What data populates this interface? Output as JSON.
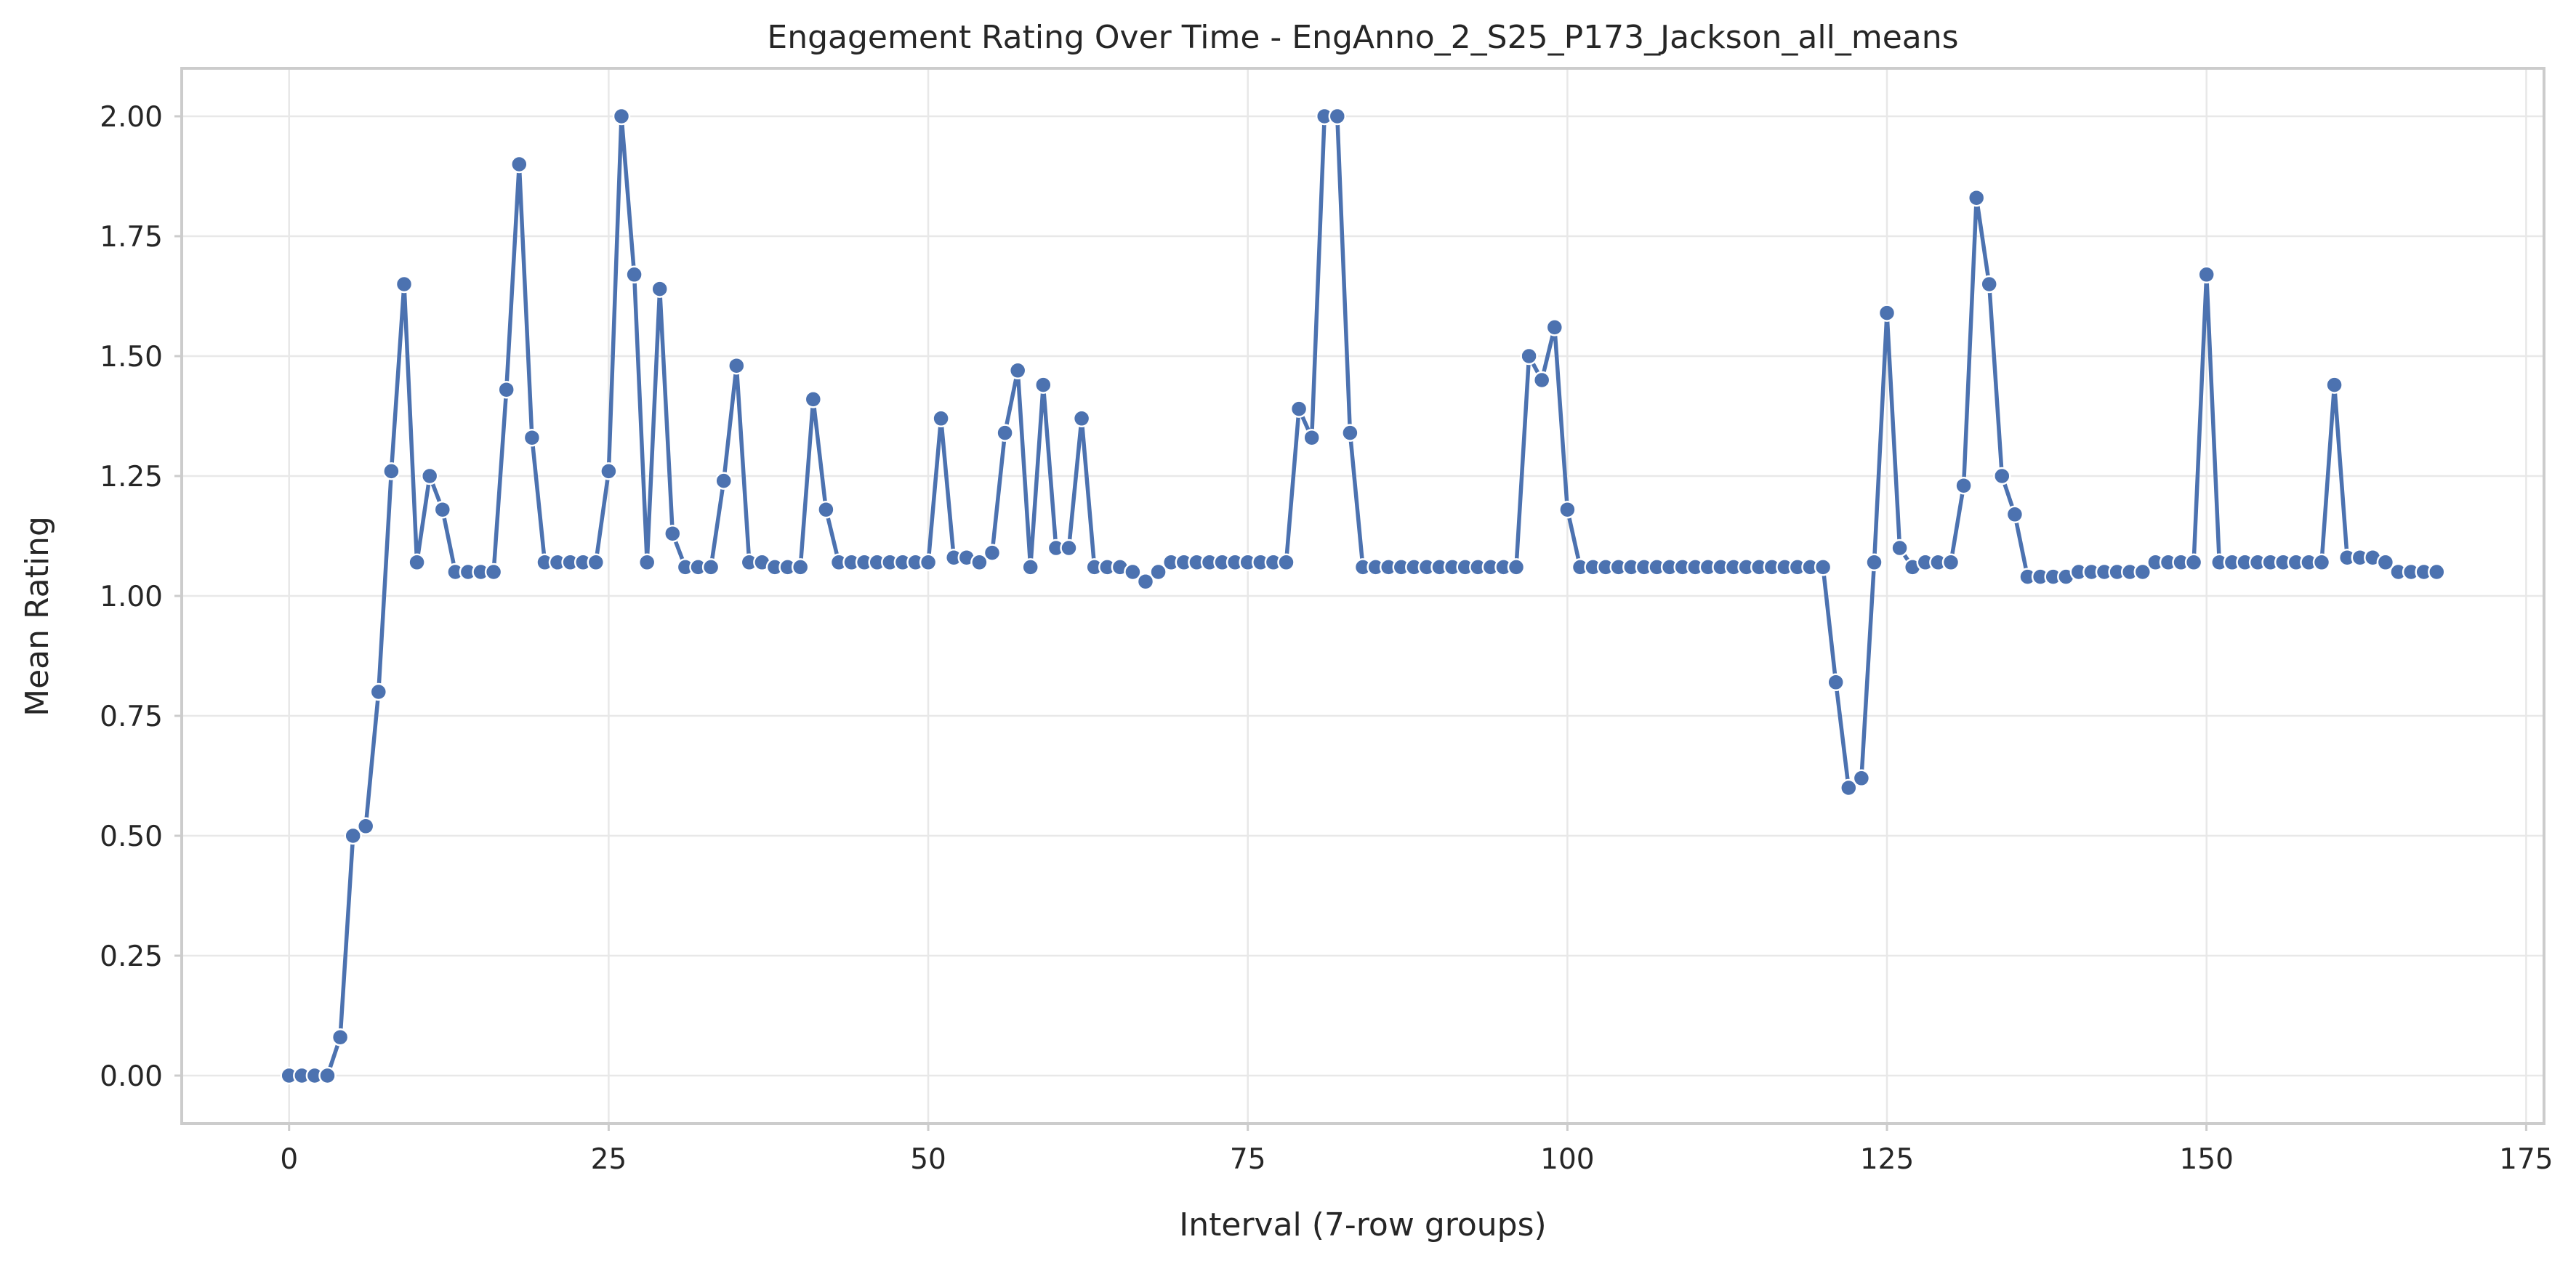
{
  "chart_data": {
    "type": "line",
    "title": "Engagement Rating Over Time - EngAnno_2_S25_P173_Jackson_all_means",
    "xlabel": "Interval (7-row groups)",
    "ylabel": "Mean Rating",
    "xlim": [
      -8.4,
      176.4
    ],
    "ylim": [
      -0.1,
      2.1
    ],
    "xticks": [
      0,
      25,
      50,
      75,
      100,
      125,
      150,
      175
    ],
    "yticks": [
      0.0,
      0.25,
      0.5,
      0.75,
      1.0,
      1.25,
      1.5,
      1.75,
      2.0
    ],
    "xtick_labels": [
      "0",
      "25",
      "50",
      "75",
      "100",
      "125",
      "150",
      "175"
    ],
    "ytick_labels": [
      "0.00",
      "0.25",
      "0.50",
      "0.75",
      "1.00",
      "1.25",
      "1.50",
      "1.75",
      "2.00"
    ],
    "grid": true,
    "color": "#4c72b0",
    "marker": "circle",
    "x_start": 0,
    "x_step": 1,
    "values": [
      0.0,
      0.0,
      0.0,
      0.0,
      0.08,
      0.5,
      0.52,
      0.8,
      1.26,
      1.65,
      1.07,
      1.25,
      1.18,
      1.05,
      1.05,
      1.05,
      1.05,
      1.43,
      1.9,
      1.33,
      1.07,
      1.07,
      1.07,
      1.07,
      1.07,
      1.26,
      2.0,
      1.67,
      1.07,
      1.64,
      1.13,
      1.06,
      1.06,
      1.06,
      1.24,
      1.48,
      1.07,
      1.07,
      1.06,
      1.06,
      1.06,
      1.41,
      1.18,
      1.07,
      1.07,
      1.07,
      1.07,
      1.07,
      1.07,
      1.07,
      1.07,
      1.37,
      1.08,
      1.08,
      1.07,
      1.09,
      1.34,
      1.47,
      1.06,
      1.44,
      1.1,
      1.1,
      1.37,
      1.06,
      1.06,
      1.06,
      1.05,
      1.03,
      1.05,
      1.07,
      1.07,
      1.07,
      1.07,
      1.07,
      1.07,
      1.07,
      1.07,
      1.07,
      1.07,
      1.39,
      1.33,
      2.0,
      2.0,
      1.34,
      1.06,
      1.06,
      1.06,
      1.06,
      1.06,
      1.06,
      1.06,
      1.06,
      1.06,
      1.06,
      1.06,
      1.06,
      1.06,
      1.5,
      1.45,
      1.56,
      1.18,
      1.06,
      1.06,
      1.06,
      1.06,
      1.06,
      1.06,
      1.06,
      1.06,
      1.06,
      1.06,
      1.06,
      1.06,
      1.06,
      1.06,
      1.06,
      1.06,
      1.06,
      1.06,
      1.06,
      1.06,
      0.82,
      0.6,
      0.62,
      1.07,
      1.59,
      1.1,
      1.06,
      1.07,
      1.07,
      1.07,
      1.23,
      1.83,
      1.65,
      1.25,
      1.17,
      1.04,
      1.04,
      1.04,
      1.04,
      1.05,
      1.05,
      1.05,
      1.05,
      1.05,
      1.05,
      1.07,
      1.07,
      1.07,
      1.07,
      1.67,
      1.07,
      1.07,
      1.07,
      1.07,
      1.07,
      1.07,
      1.07,
      1.07,
      1.07,
      1.44,
      1.08,
      1.08,
      1.08,
      1.07,
      1.05,
      1.05,
      1.05,
      1.05
    ]
  }
}
